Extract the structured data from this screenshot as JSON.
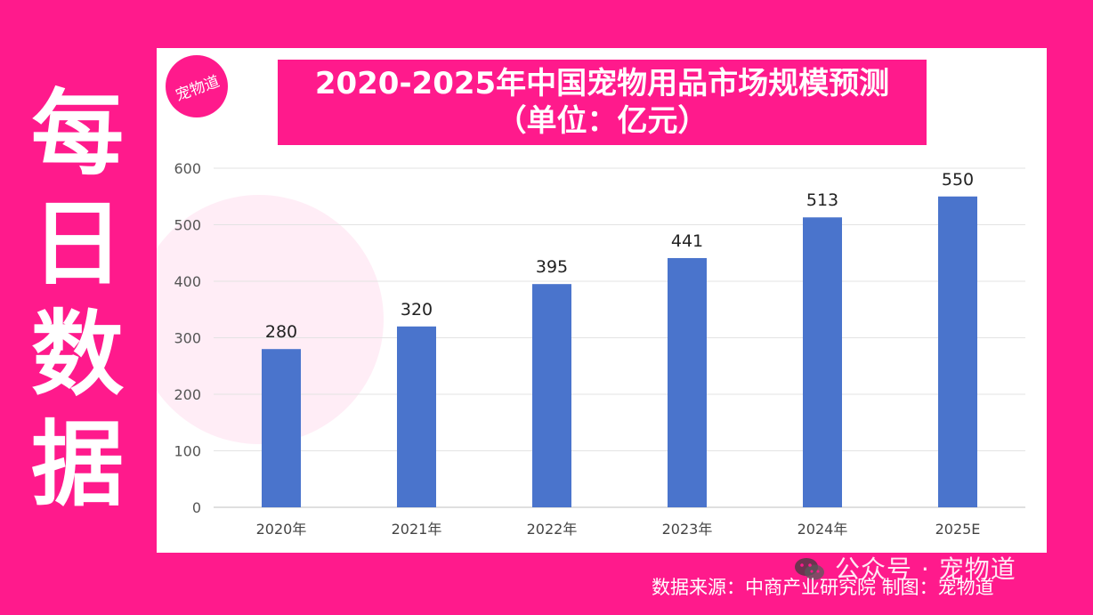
{
  "side_title": [
    "每",
    "日",
    "数",
    "据"
  ],
  "logo": {
    "text": "宠物道"
  },
  "chart_data": {
    "type": "bar",
    "title": "2020-2025年中国宠物用品市场规模预测",
    "subtitle": "（单位：亿元）",
    "categories": [
      "2020年",
      "2021年",
      "2022年",
      "2023年",
      "2024年",
      "2025E"
    ],
    "values": [
      280,
      320,
      395,
      441,
      513,
      550
    ],
    "ylim": [
      0,
      600
    ],
    "yticks": [
      0,
      100,
      200,
      300,
      400,
      500,
      600
    ],
    "grid": true,
    "legend": "none",
    "bar_color": "#4a74cc"
  },
  "footer": {
    "wechat_label": "公众号 · 宠物道",
    "source": "数据来源：中商产业研究院   制图：宠物道"
  },
  "colors": {
    "background": "#ff1a8c",
    "panel": "#ffffff",
    "bar": "#4a74cc",
    "text": "#333333"
  }
}
